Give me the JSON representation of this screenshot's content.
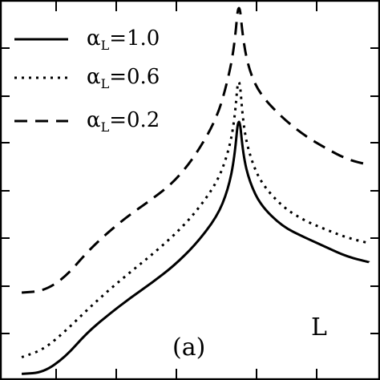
{
  "chart_data": {
    "type": "line",
    "x": [
      -1.0,
      -0.9,
      -0.8,
      -0.7,
      -0.6,
      -0.5,
      -0.4,
      -0.3,
      -0.2,
      -0.1,
      -0.05,
      -0.02,
      0.0,
      0.02,
      0.05,
      0.1,
      0.2,
      0.3,
      0.4,
      0.5,
      0.6
    ],
    "series": [
      {
        "name": "α_L=1.0",
        "label_prefix": "α",
        "label_sub": "L",
        "label_value": "=1.0",
        "dash": "solid",
        "values": [
          0.08,
          0.1,
          0.3,
          0.62,
          0.86,
          1.08,
          1.28,
          1.5,
          1.78,
          2.15,
          2.5,
          2.92,
          3.55,
          2.95,
          2.6,
          2.3,
          2.02,
          1.88,
          1.75,
          1.62,
          1.55
        ]
      },
      {
        "name": "α_L=0.6",
        "label_prefix": "α",
        "label_sub": "L",
        "label_value": "=0.6",
        "dash": "dotted",
        "values": [
          0.3,
          0.4,
          0.64,
          0.92,
          1.18,
          1.42,
          1.65,
          1.9,
          2.2,
          2.6,
          2.98,
          3.4,
          4.1,
          3.35,
          2.95,
          2.6,
          2.28,
          2.1,
          1.98,
          1.87,
          1.8
        ]
      },
      {
        "name": "α_L=0.2",
        "label_prefix": "α",
        "label_sub": "L",
        "label_value": "=0.2",
        "dash": "dashed",
        "values": [
          1.15,
          1.17,
          1.35,
          1.68,
          1.95,
          2.18,
          2.38,
          2.6,
          2.95,
          3.45,
          3.95,
          4.4,
          5.05,
          4.45,
          4.05,
          3.75,
          3.45,
          3.22,
          3.05,
          2.9,
          2.83
        ]
      }
    ],
    "xlim": [
      -1.1,
      0.65
    ],
    "ylim": [
      0,
      5
    ],
    "annotations": [
      "(a)",
      "L"
    ],
    "legend_position": "top-left",
    "grid": false
  }
}
